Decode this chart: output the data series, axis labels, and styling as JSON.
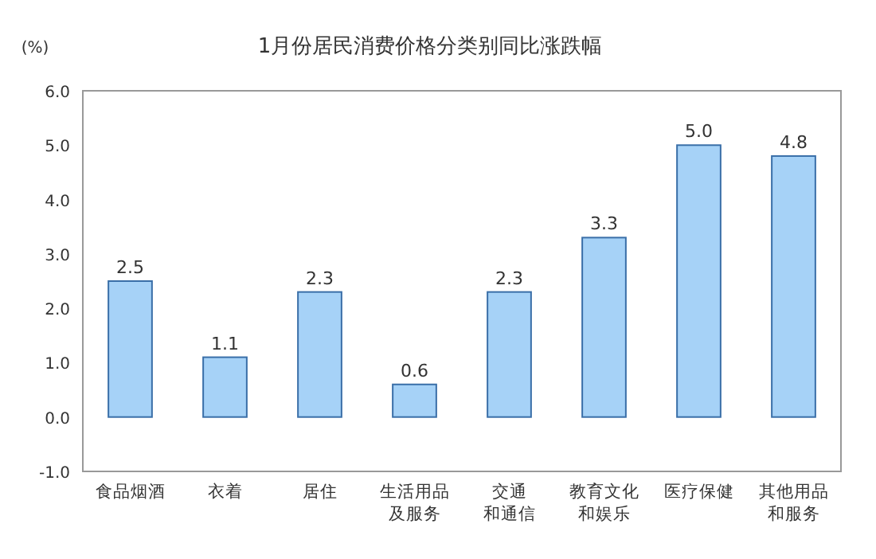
{
  "chart_data": {
    "type": "bar",
    "title": "1月份居民消费价格分类别同比涨跌幅",
    "ylabel": "(%)",
    "categories": [
      "食品烟酒",
      "衣着",
      "居住",
      "生活用品及服务",
      "交通和通信",
      "教育文化和娱乐",
      "医疗保健",
      "其他用品和服务"
    ],
    "values": [
      2.5,
      1.1,
      2.3,
      0.6,
      2.3,
      3.3,
      5.0,
      4.8
    ],
    "value_labels": [
      "2.5",
      "1.1",
      "2.3",
      "0.6",
      "2.3",
      "3.3",
      "5.0",
      "4.8"
    ],
    "color": "#a6d2f7",
    "ylim": [
      -1,
      6
    ],
    "yticks": [
      {
        "value": -1,
        "label": "-1.0"
      },
      {
        "value": 0,
        "label": "0.0"
      },
      {
        "value": 1,
        "label": "1.0"
      },
      {
        "value": 2,
        "label": "2.0"
      },
      {
        "value": 3,
        "label": "3.0"
      },
      {
        "value": 4,
        "label": "4.0"
      },
      {
        "value": 5,
        "label": "5.0"
      },
      {
        "value": 6,
        "label": "6.0"
      }
    ],
    "grid": false
  }
}
